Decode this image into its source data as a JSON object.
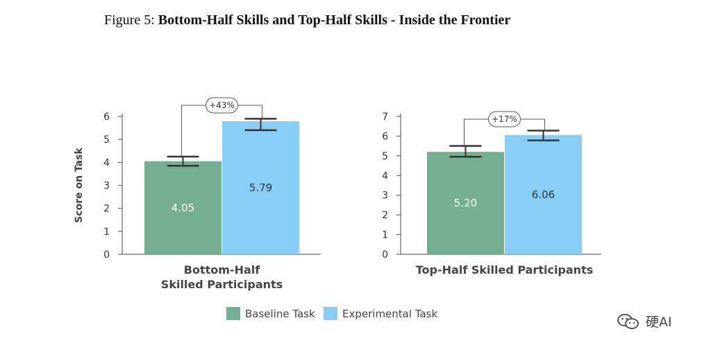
{
  "figure": {
    "label": "Figure 5:",
    "title": "Bottom-Half Skills and Top-Half Skills - Inside the Frontier"
  },
  "colors": {
    "baseline": "#74b090",
    "experimental": "#87cdf5",
    "axis": "#666666",
    "error": "#333333"
  },
  "chart_data": [
    {
      "type": "bar",
      "ylabel": "Score on Task",
      "xlabel": [
        "Bottom-Half",
        "Skilled Participants"
      ],
      "ylim": [
        0,
        6
      ],
      "yticks": [
        0,
        1,
        2,
        3,
        4,
        5,
        6
      ],
      "series": [
        {
          "name": "Baseline Task",
          "value": 4.05,
          "value_label": "4.05",
          "error": [
            3.85,
            4.25
          ]
        },
        {
          "name": "Experimental Task",
          "value": 5.79,
          "value_label": "5.79",
          "error": [
            5.4,
            5.9
          ]
        }
      ],
      "difference_label": "+43%"
    },
    {
      "type": "bar",
      "ylabel": "",
      "xlabel": [
        "Top-Half Skilled Participants"
      ],
      "ylim": [
        0,
        7
      ],
      "yticks": [
        0,
        1,
        2,
        3,
        4,
        5,
        6,
        7
      ],
      "series": [
        {
          "name": "Baseline Task",
          "value": 5.2,
          "value_label": "5.20",
          "error": [
            4.95,
            5.5
          ]
        },
        {
          "name": "Experimental Task",
          "value": 6.06,
          "value_label": "6.06",
          "error": [
            5.78,
            6.28
          ]
        }
      ],
      "difference_label": "+17%"
    }
  ],
  "legend": [
    "Baseline Task",
    "Experimental Task"
  ],
  "watermark": {
    "text": "硬AI",
    "icon": "wechat-icon"
  }
}
